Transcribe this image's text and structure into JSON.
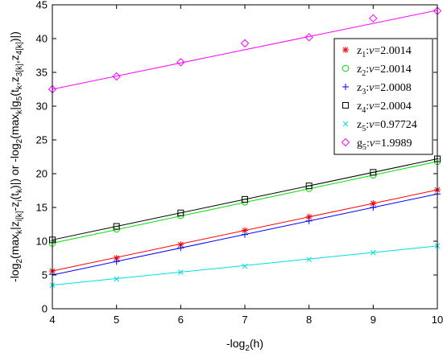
{
  "chart_data": {
    "type": "line",
    "xlabel": "-log₂(h)",
    "ylabel": "-log₂(maxₖ|z_{i[k]}-z_i(tₖ)|) or -log₂(maxₖ|g₅(tₖ,z_{3[k]},z_{4[k]})|)",
    "xlim": [
      4,
      10
    ],
    "ylim": [
      0,
      45
    ],
    "xticks": [
      4,
      5,
      6,
      7,
      8,
      9,
      10
    ],
    "yticks": [
      0,
      5,
      10,
      15,
      20,
      25,
      30,
      35,
      40,
      45
    ],
    "grid": false,
    "legend_position": "top-right",
    "x": [
      4,
      5,
      6,
      7,
      8,
      9,
      10
    ],
    "series": [
      {
        "name": "z₁:ν=2.0014",
        "sub": "1",
        "nu": "2.0014",
        "var": "z",
        "marker": "star",
        "color": "#ff0000",
        "values": [
          5.6,
          7.5,
          9.5,
          11.6,
          13.6,
          15.6,
          17.6
        ],
        "fit": [
          5.6,
          17.6
        ]
      },
      {
        "name": "z₂:ν=2.0014",
        "sub": "2",
        "nu": "2.0014",
        "var": "z",
        "marker": "circle",
        "color": "#00dd00",
        "values": [
          9.7,
          11.8,
          13.8,
          15.8,
          17.8,
          19.8,
          21.8
        ],
        "fit": [
          9.7,
          21.8
        ]
      },
      {
        "name": "z₃:ν=2.0008",
        "sub": "3",
        "nu": "2.0008",
        "var": "z",
        "marker": "plus",
        "color": "#0000ff",
        "values": [
          5.1,
          7.0,
          9.0,
          11.0,
          13.0,
          15.0,
          17.0
        ],
        "fit": [
          5.0,
          17.0
        ]
      },
      {
        "name": "z₄:ν=2.0004",
        "sub": "4",
        "nu": "2.0004",
        "var": "z",
        "marker": "square",
        "color": "#000000",
        "values": [
          10.2,
          12.2,
          14.2,
          16.2,
          18.2,
          20.2,
          22.2
        ],
        "fit": [
          10.2,
          22.2
        ]
      },
      {
        "name": "z₅:ν=0.97724",
        "sub": "5",
        "nu": "0.97724",
        "var": "z",
        "marker": "x",
        "color": "#00dddd",
        "values": [
          3.5,
          4.4,
          5.4,
          6.3,
          7.3,
          8.3,
          9.3
        ],
        "fit": [
          3.5,
          9.3
        ]
      },
      {
        "name": "g₅:ν=1.9989",
        "sub": "5",
        "nu": "1.9989",
        "var": "g",
        "marker": "diamond",
        "color": "#ff00ff",
        "values": [
          32.5,
          34.4,
          36.5,
          39.3,
          40.2,
          43.0,
          44.1
        ],
        "fit": [
          32.5,
          44.2
        ]
      }
    ]
  }
}
